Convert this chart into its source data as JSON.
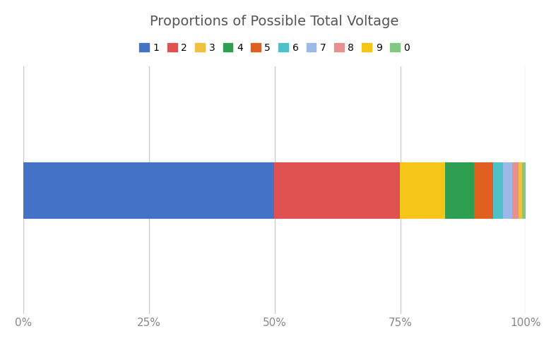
{
  "title": "Proportions of Possible Total Voltage",
  "series_bar_order": [
    {
      "label": "1",
      "value": 0.499,
      "color": "#4472C4"
    },
    {
      "label": "2",
      "value": 0.25,
      "color": "#E05252"
    },
    {
      "label": "9",
      "value": 0.09,
      "color": "#F5C518"
    },
    {
      "label": "4",
      "value": 0.058,
      "color": "#2E9E50"
    },
    {
      "label": "5",
      "value": 0.038,
      "color": "#E06020"
    },
    {
      "label": "6",
      "value": 0.02,
      "color": "#50C0C8"
    },
    {
      "label": "7",
      "value": 0.018,
      "color": "#9BB8E8"
    },
    {
      "label": "8",
      "value": 0.012,
      "color": "#E89090"
    },
    {
      "label": "3",
      "value": 0.008,
      "color": "#F0C040"
    },
    {
      "label": "0",
      "value": 0.007,
      "color": "#82C882"
    }
  ],
  "series_legend_order": [
    "1",
    "2",
    "3",
    "4",
    "5",
    "6",
    "7",
    "8",
    "9",
    "0"
  ],
  "colors": {
    "1": "#4472C4",
    "2": "#E05252",
    "3": "#F0C040",
    "4": "#2E9E50",
    "5": "#E06020",
    "6": "#50C0C8",
    "7": "#9BB8E8",
    "8": "#E89090",
    "9": "#F5C518",
    "0": "#82C882"
  },
  "background_color": "#ffffff",
  "title_fontsize": 14,
  "legend_fontsize": 10,
  "tick_label_color": "#888888",
  "grid_color": "#cccccc",
  "bar_height": 0.55
}
